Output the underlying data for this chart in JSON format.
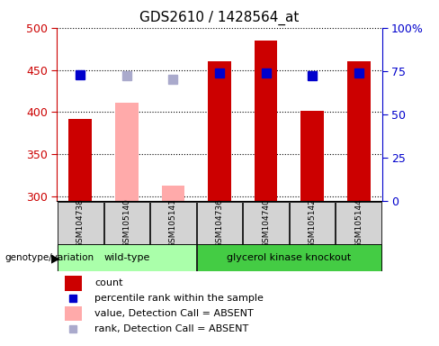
{
  "title": "GDS2610 / 1428564_at",
  "samples": [
    "GSM104738",
    "GSM105140",
    "GSM105141",
    "GSM104736",
    "GSM104740",
    "GSM105142",
    "GSM105144"
  ],
  "groups": [
    "wild-type",
    "wild-type",
    "wild-type",
    "glycerol kinase knockout",
    "glycerol kinase knockout",
    "glycerol kinase knockout",
    "glycerol kinase knockout"
  ],
  "bar_values": [
    392,
    411,
    313,
    460,
    485,
    401,
    460
  ],
  "bar_absent": [
    false,
    true,
    true,
    false,
    false,
    false,
    false
  ],
  "rank_values": [
    73,
    72,
    70,
    74,
    74,
    72,
    74
  ],
  "rank_absent": [
    false,
    true,
    true,
    false,
    false,
    false,
    false
  ],
  "ylim_left": [
    295,
    500
  ],
  "ylim_right": [
    0,
    100
  ],
  "yticks_left": [
    300,
    350,
    400,
    450,
    500
  ],
  "yticks_right": [
    0,
    25,
    50,
    75,
    100
  ],
  "ytick_labels_right": [
    "0",
    "25",
    "50",
    "75",
    "100%"
  ],
  "bar_color_present": "#cc0000",
  "bar_color_absent": "#ffaaaa",
  "rank_color_present": "#0000cc",
  "rank_color_absent": "#aaaacc",
  "group_colors": {
    "wild-type": "#aaffaa",
    "glycerol kinase knockout": "#44cc44"
  },
  "genotype_label": "genotype/variation",
  "legend_items": [
    {
      "label": "count",
      "color": "#cc0000",
      "type": "bar"
    },
    {
      "label": "percentile rank within the sample",
      "color": "#0000cc",
      "type": "square"
    },
    {
      "label": "value, Detection Call = ABSENT",
      "color": "#ffaaaa",
      "type": "bar"
    },
    {
      "label": "rank, Detection Call = ABSENT",
      "color": "#aaaacc",
      "type": "square"
    }
  ],
  "bar_width": 0.5,
  "marker_size": 7,
  "background_color": "#ffffff",
  "axis_label_color_left": "#cc0000",
  "axis_label_color_right": "#0000cc"
}
